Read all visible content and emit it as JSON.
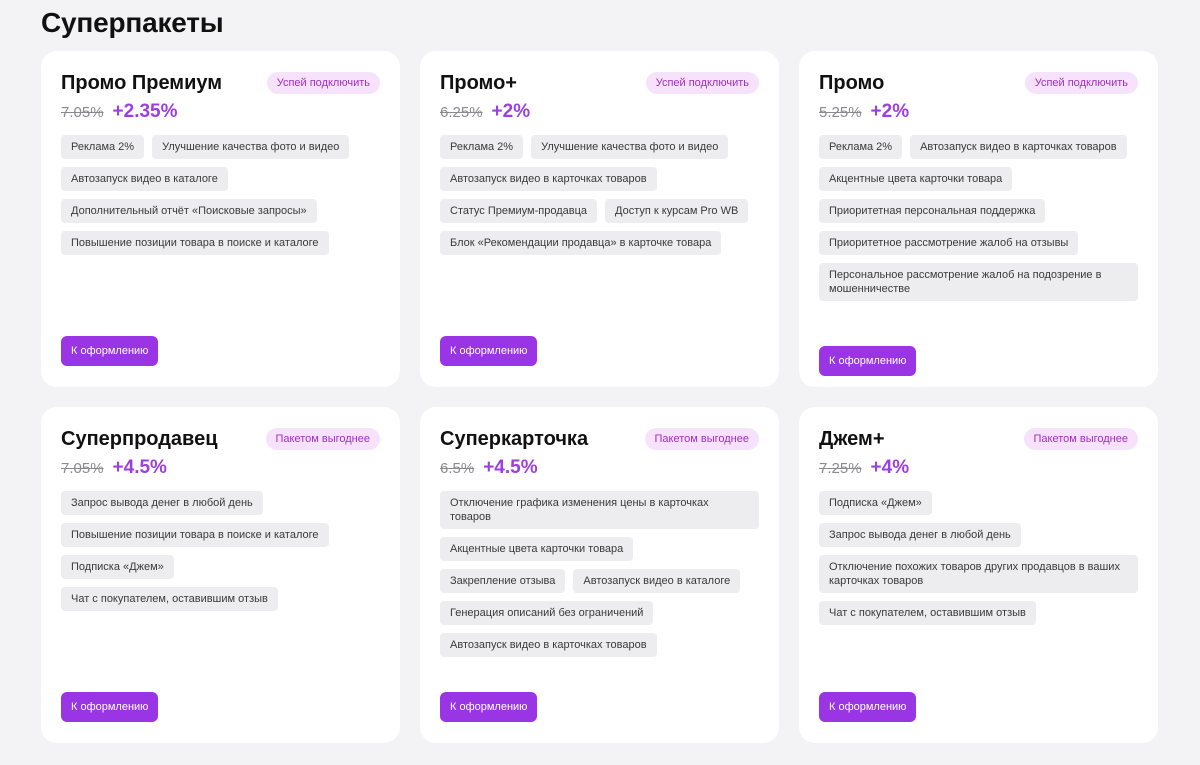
{
  "page": {
    "title": "Суперпакеты"
  },
  "colors": {
    "accent": "#9a35e6",
    "badge_bg": "#f6e3fb",
    "badge_text": "#a02ec3",
    "chip_bg": "#ededf0"
  },
  "cards": [
    {
      "title": "Промо Премиум",
      "badge": "Успей подключить",
      "old_rate": "7.05%",
      "new_rate": "+2.35%",
      "features": [
        "Реклама 2%",
        "Улучшение качества фото и видео",
        "Автозапуск видео в каталоге",
        "Дополнительный отчёт «Поисковые запросы»",
        "Повышение позиции товара в поиске и каталоге"
      ],
      "cta": "К оформлению"
    },
    {
      "title": "Промо+",
      "badge": "Успей подключить",
      "old_rate": "6.25%",
      "new_rate": "+2%",
      "features": [
        "Реклама 2%",
        "Улучшение качества фото и видео",
        "Автозапуск видео в карточках товаров",
        "Статус Премиум-продавца",
        "Доступ к курсам Pro WB",
        "Блок «Рекомендации продавца» в карточке товара"
      ],
      "cta": "К оформлению"
    },
    {
      "title": "Промо",
      "badge": "Успей подключить",
      "old_rate": "5.25%",
      "new_rate": "+2%",
      "features": [
        "Реклама 2%",
        "Автозапуск видео в карточках товаров",
        "Акцентные цвета карточки товара",
        "Приоритетная персональная поддержка",
        "Приоритетное рассмотрение жалоб на отзывы",
        "Персональное рассмотрение жалоб на подозрение в мошенничестве"
      ],
      "cta": "К оформлению"
    },
    {
      "title": "Суперпродавец",
      "badge": "Пакетом выгоднее",
      "old_rate": "7.05%",
      "new_rate": "+4.5%",
      "features": [
        "Запрос вывода денег в любой день",
        "Повышение позиции товара в поиске и каталоге",
        "Подписка «Джем»",
        "Чат с покупателем, оставившим отзыв"
      ],
      "cta": "К оформлению"
    },
    {
      "title": "Суперкарточка",
      "badge": "Пакетом выгоднее",
      "old_rate": "6.5%",
      "new_rate": "+4.5%",
      "features": [
        "Отключение графика изменения цены в карточках товаров",
        "Акцентные цвета карточки товара",
        "Закрепление отзыва",
        "Автозапуск видео в каталоге",
        "Генерация описаний без ограничений",
        "Автозапуск видео в карточках товаров"
      ],
      "cta": "К оформлению"
    },
    {
      "title": "Джем+",
      "badge": "Пакетом выгоднее",
      "old_rate": "7.25%",
      "new_rate": "+4%",
      "features": [
        "Подписка «Джем»",
        "Запрос вывода денег в любой день",
        "Отключение похожих товаров других продавцов в ваших карточках товаров",
        "Чат с покупателем, оставившим отзыв"
      ],
      "cta": "К оформлению"
    }
  ]
}
